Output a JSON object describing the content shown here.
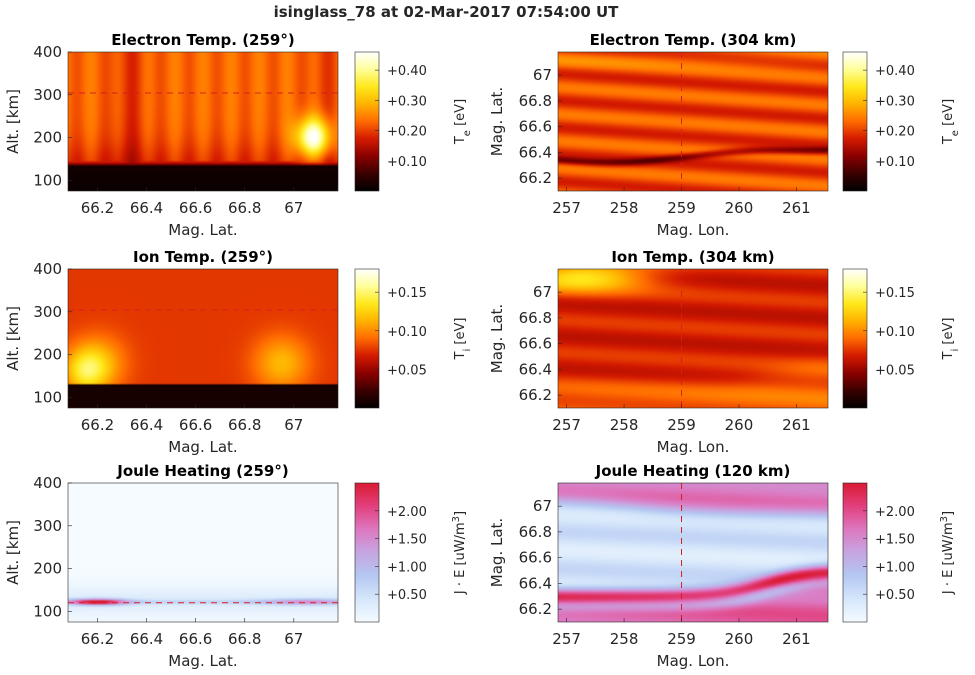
{
  "figure": {
    "suptitle": "isinglass_78 at 02-Mar-2017 07:54:00 UT"
  },
  "colors": {
    "hot": [
      "#000000",
      "#3a0000",
      "#8a0000",
      "#d41a00",
      "#ff6a00",
      "#ffb200",
      "#ffe81a",
      "#ffff9a",
      "#ffffff"
    ],
    "heating": [
      "#f5fbff",
      "#d6e7fb",
      "#b4c8f2",
      "#c6a6e2",
      "#dd78c0",
      "#e2407e",
      "#da1c34"
    ],
    "dashed_line": "#d62020",
    "frame": "#262626"
  },
  "chart_data": [
    {
      "id": "p1",
      "type": "heatmap",
      "title": "Electron Temp. (259°)",
      "xlabel": "Mag. Lat.",
      "ylabel": "Alt. [km]",
      "xlim": [
        66.08,
        67.18
      ],
      "ylim": [
        75,
        400
      ],
      "xticks": [
        66.2,
        66.4,
        66.6,
        66.8,
        67.0
      ],
      "xticklabels": [
        "66.2",
        "66.4",
        "66.6",
        "66.8",
        "67"
      ],
      "yticks": [
        100,
        200,
        300,
        400
      ],
      "yticklabels": [
        "100",
        "200",
        "300",
        "400"
      ],
      "hline": 304,
      "colormap": "hot",
      "colorbar": {
        "label": "Te [eV]",
        "label_main": "T",
        "label_sub": "e",
        "label_unit": " [eV]",
        "clim": [
          0.0,
          0.46
        ],
        "ticks": [
          0.1,
          0.2,
          0.3,
          0.4
        ],
        "ticklabels": [
          "+0.10",
          "+0.20",
          "+0.30",
          "+0.40"
        ]
      }
    },
    {
      "id": "p2",
      "type": "heatmap",
      "title": "Electron Temp. (304 km)",
      "xlabel": "Mag. Lon.",
      "ylabel": "Mag. Lat.",
      "xlim": [
        256.85,
        261.55
      ],
      "ylim": [
        66.1,
        67.18
      ],
      "xticks": [
        257,
        258,
        259,
        260,
        261
      ],
      "xticklabels": [
        "257",
        "258",
        "259",
        "260",
        "261"
      ],
      "yticks": [
        66.2,
        66.4,
        66.6,
        66.8,
        67.0
      ],
      "yticklabels": [
        "66.2",
        "66.4",
        "66.6",
        "66.8",
        "67"
      ],
      "vline": 259,
      "colormap": "hot",
      "colorbar": {
        "label": "Te [eV]",
        "label_main": "T",
        "label_sub": "e",
        "label_unit": " [eV]",
        "clim": [
          0.0,
          0.46
        ],
        "ticks": [
          0.1,
          0.2,
          0.3,
          0.4
        ],
        "ticklabels": [
          "+0.10",
          "+0.20",
          "+0.30",
          "+0.40"
        ]
      }
    },
    {
      "id": "p3",
      "type": "heatmap",
      "title": "Ion Temp. (259°)",
      "xlabel": "Mag. Lat.",
      "ylabel": "Alt. [km]",
      "xlim": [
        66.08,
        67.18
      ],
      "ylim": [
        75,
        400
      ],
      "xticks": [
        66.2,
        66.4,
        66.6,
        66.8,
        67.0
      ],
      "xticklabels": [
        "66.2",
        "66.4",
        "66.6",
        "66.8",
        "67"
      ],
      "yticks": [
        100,
        200,
        300,
        400
      ],
      "yticklabels": [
        "100",
        "200",
        "300",
        "400"
      ],
      "hline": 304,
      "colormap": "hot",
      "colorbar": {
        "label": "Ti [eV]",
        "label_main": "T",
        "label_sub": "i",
        "label_unit": " [eV]",
        "clim": [
          0.0,
          0.18
        ],
        "ticks": [
          0.05,
          0.1,
          0.15
        ],
        "ticklabels": [
          "+0.05",
          "+0.10",
          "+0.15"
        ]
      }
    },
    {
      "id": "p4",
      "type": "heatmap",
      "title": "Ion Temp. (304 km)",
      "xlabel": "Mag. Lon.",
      "ylabel": "Mag. Lat.",
      "xlim": [
        256.85,
        261.55
      ],
      "ylim": [
        66.1,
        67.18
      ],
      "xticks": [
        257,
        258,
        259,
        260,
        261
      ],
      "xticklabels": [
        "257",
        "258",
        "259",
        "260",
        "261"
      ],
      "yticks": [
        66.2,
        66.4,
        66.6,
        66.8,
        67.0
      ],
      "yticklabels": [
        "66.2",
        "66.4",
        "66.6",
        "66.8",
        "67"
      ],
      "vline": 259,
      "colormap": "hot",
      "colorbar": {
        "label": "Ti [eV]",
        "label_main": "T",
        "label_sub": "i",
        "label_unit": " [eV]",
        "clim": [
          0.0,
          0.18
        ],
        "ticks": [
          0.05,
          0.1,
          0.15
        ],
        "ticklabels": [
          "+0.05",
          "+0.10",
          "+0.15"
        ]
      }
    },
    {
      "id": "p5",
      "type": "heatmap",
      "title": "Joule Heating (259°)",
      "xlabel": "Mag. Lat.",
      "ylabel": "Alt. [km]",
      "xlim": [
        66.08,
        67.18
      ],
      "ylim": [
        75,
        400
      ],
      "xticks": [
        66.2,
        66.4,
        66.6,
        66.8,
        67.0
      ],
      "xticklabels": [
        "66.2",
        "66.4",
        "66.6",
        "66.8",
        "67"
      ],
      "yticks": [
        100,
        200,
        300,
        400
      ],
      "yticklabels": [
        "100",
        "200",
        "300",
        "400"
      ],
      "hline": 120,
      "colormap": "heating",
      "colorbar": {
        "label": "J · E [uW/m3]",
        "label_main": "J · E [uW/m",
        "label_sup": "3",
        "label_unit": "]",
        "clim": [
          0.0,
          2.5
        ],
        "ticks": [
          0.5,
          1.0,
          1.5,
          2.0
        ],
        "ticklabels": [
          "+0.50",
          "+1.00",
          "+1.50",
          "+2.00"
        ]
      }
    },
    {
      "id": "p6",
      "type": "heatmap",
      "title": "Joule Heating (120 km)",
      "xlabel": "Mag. Lon.",
      "ylabel": "Mag. Lat.",
      "xlim": [
        256.85,
        261.55
      ],
      "ylim": [
        66.1,
        67.18
      ],
      "xticks": [
        257,
        258,
        259,
        260,
        261
      ],
      "xticklabels": [
        "257",
        "258",
        "259",
        "260",
        "261"
      ],
      "yticks": [
        66.2,
        66.4,
        66.6,
        66.8,
        67.0
      ],
      "yticklabels": [
        "66.2",
        "66.4",
        "66.6",
        "66.8",
        "67"
      ],
      "vline": 259,
      "colormap": "heating",
      "colorbar": {
        "label": "J · E [uW/m3]",
        "label_main": "J · E [uW/m",
        "label_sup": "3",
        "label_unit": "]",
        "clim": [
          0.0,
          2.5
        ],
        "ticks": [
          0.5,
          1.0,
          1.5,
          2.0
        ],
        "ticklabels": [
          "+0.50",
          "+1.00",
          "+1.50",
          "+2.00"
        ]
      }
    }
  ]
}
